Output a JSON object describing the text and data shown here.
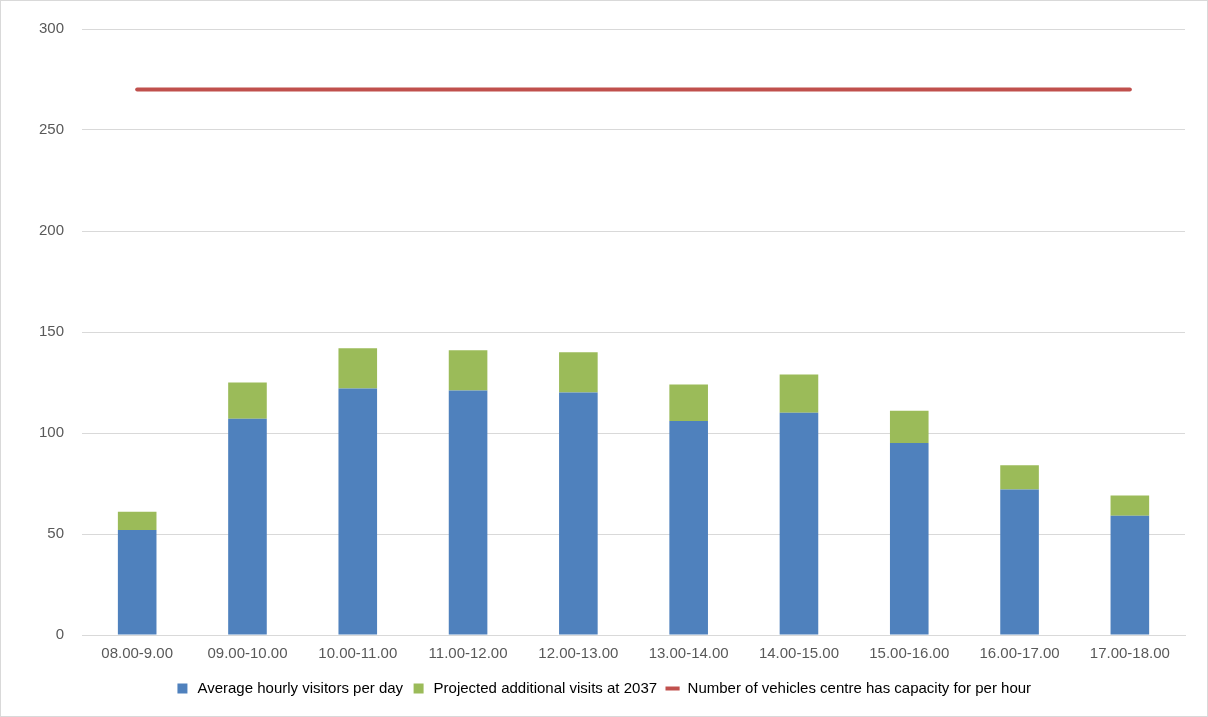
{
  "chart_data": {
    "type": "bar",
    "stacked": true,
    "categories": [
      "08.00-9.00",
      "09.00-10.00",
      "10.00-11.00",
      "11.00-12.00",
      "12.00-13.00",
      "13.00-14.00",
      "14.00-15.00",
      "15.00-16.00",
      "16.00-17.00",
      "17.00-18.00"
    ],
    "series": [
      {
        "name": "Average hourly visitors per day",
        "color": "#4f81bd",
        "values": [
          52,
          107,
          122,
          121,
          120,
          106,
          110,
          95,
          72,
          59
        ]
      },
      {
        "name": "Projected additional visits at 2037",
        "color": "#9bbb59",
        "values": [
          9,
          18,
          20,
          20,
          20,
          18,
          19,
          16,
          12,
          10
        ]
      },
      {
        "name": "Number of vehicles centre has capacity for per hour",
        "type": "line",
        "color": "#c0504d",
        "marker": "none",
        "values": [
          270,
          270,
          270,
          270,
          270,
          270,
          270,
          270,
          270,
          270
        ]
      }
    ],
    "ylim": [
      0,
      300
    ],
    "yticks": [
      0,
      50,
      100,
      150,
      200,
      250,
      300
    ],
    "grid": "y",
    "legend": "bottom"
  }
}
